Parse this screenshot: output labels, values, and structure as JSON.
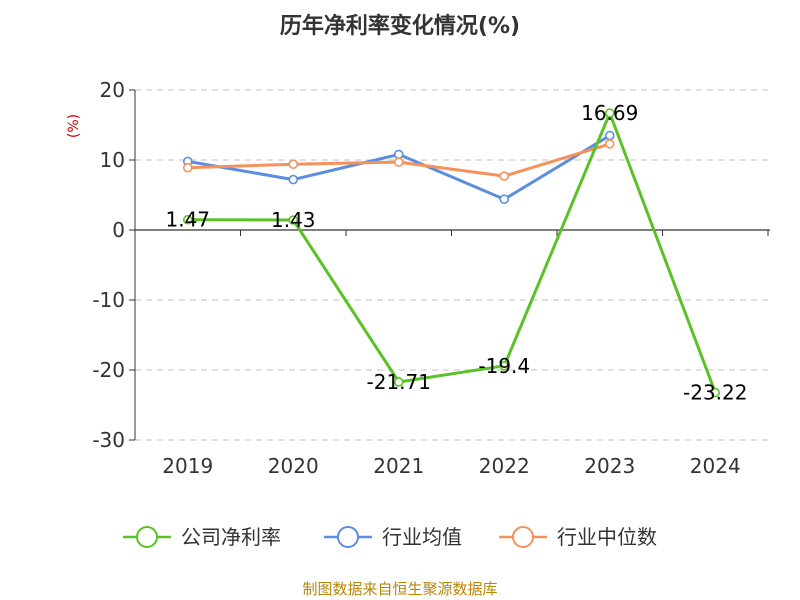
{
  "chart_data": {
    "type": "line",
    "title": "历年净利率变化情况(%)",
    "ylabel": "(%)",
    "xlabel": "",
    "categories": [
      "2019",
      "2020",
      "2021",
      "2022",
      "2023",
      "2024"
    ],
    "ylim": [
      -30,
      20
    ],
    "yticks": [
      20,
      10,
      0,
      -10,
      -20,
      -30
    ],
    "grid": true,
    "legend_position": "bottom",
    "series": [
      {
        "name": "公司净利率",
        "color": "#5ac127",
        "values": [
          1.47,
          1.43,
          -21.71,
          -19.4,
          16.69,
          -23.22
        ],
        "labels": [
          "1.47",
          "1.43",
          "-21.71",
          "-19.4",
          "16.69",
          "-23.22"
        ]
      },
      {
        "name": "行业均值",
        "color": "#5b8ee0",
        "values": [
          9.8,
          7.2,
          10.8,
          4.4,
          13.5,
          null
        ]
      },
      {
        "name": "行业中位数",
        "color": "#f5915a",
        "values": [
          8.9,
          9.4,
          9.7,
          7.7,
          12.3,
          null
        ]
      }
    ]
  },
  "source_note": "制图数据来自恒生聚源数据库"
}
